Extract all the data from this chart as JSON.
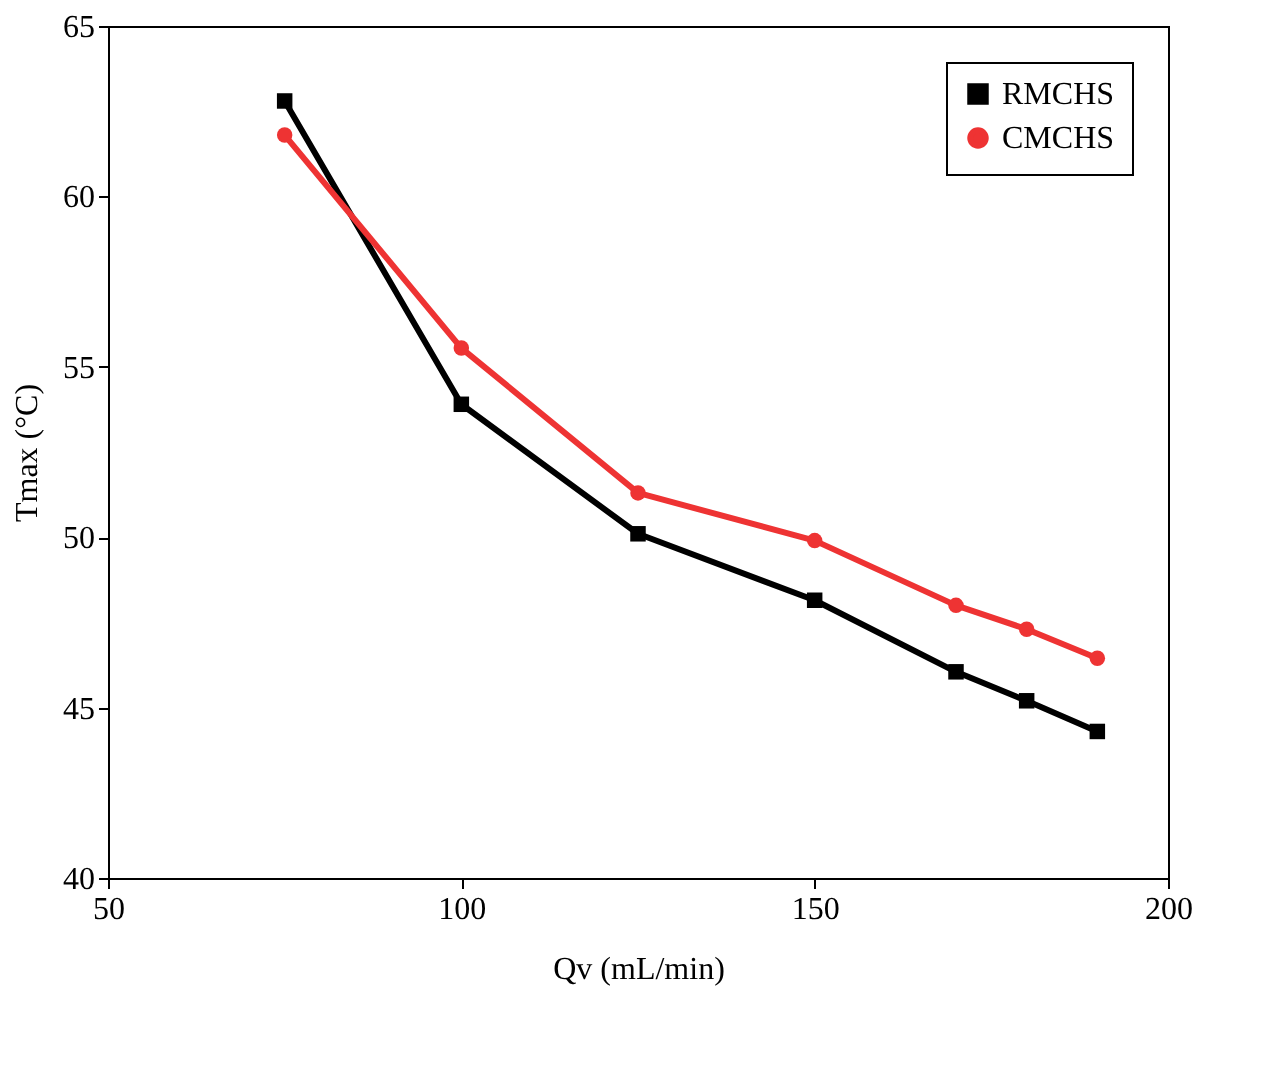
{
  "chart_data": {
    "type": "line",
    "xlabel": "Qv (mL/min)",
    "ylabel": "Tmax (°C)",
    "x": [
      75,
      100,
      125,
      150,
      170,
      180,
      190
    ],
    "series": [
      {
        "name": "RMCHS",
        "color": "#000000",
        "marker": "square",
        "values": [
          62.8,
          53.9,
          50.1,
          48.15,
          46.05,
          45.2,
          44.3
        ]
      },
      {
        "name": "CMCHS",
        "color": "#ee3333",
        "marker": "circle",
        "values": [
          61.8,
          55.55,
          51.3,
          49.9,
          48.0,
          47.3,
          46.45
        ]
      }
    ],
    "xlim": [
      50,
      200
    ],
    "xticks": [
      50,
      100,
      150,
      200
    ],
    "ylim": [
      40,
      65
    ],
    "yticks": [
      40,
      45,
      50,
      55,
      60,
      65
    ],
    "grid": false,
    "legend": "top right",
    "line_style": "solid"
  }
}
